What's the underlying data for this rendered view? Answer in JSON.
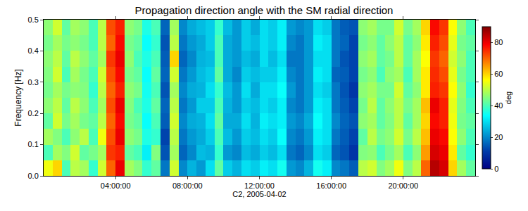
{
  "chart_data": {
    "type": "heatmap",
    "title": "Propagation direction angle with the SM radial direction",
    "x_label": "C2, 2005-04-02",
    "y_label": "Frequency [Hz]",
    "color": "jet",
    "xlim": [
      0,
      24
    ],
    "ylim": [
      0,
      0.5
    ],
    "xticks": [
      {
        "value": 4,
        "label": "04:00:00"
      },
      {
        "value": 8,
        "label": "08:00:00"
      },
      {
        "value": 12,
        "label": "12:00:00"
      },
      {
        "value": 16,
        "label": "16:00:00"
      },
      {
        "value": 20,
        "label": "20:00:00"
      }
    ],
    "yticks": [
      {
        "value": 0,
        "label": "0.0"
      },
      0.1,
      0.2,
      0.3,
      0.4,
      0.5
    ],
    "colorbar": {
      "range": [
        0,
        90
      ],
      "ticks": [
        0,
        20,
        40,
        60,
        80
      ],
      "label": "deg"
    },
    "x": [
      0.25,
      0.75,
      1.25,
      1.75,
      2.25,
      2.75,
      3.25,
      3.75,
      4.25,
      4.75,
      5.25,
      5.75,
      6.25,
      6.75,
      7.25,
      7.75,
      8.25,
      8.75,
      9.25,
      9.75,
      10.25,
      10.75,
      11.25,
      11.75,
      12.25,
      12.75,
      13.25,
      13.75,
      14.25,
      14.75,
      15.25,
      15.75,
      16.25,
      16.75,
      17.25,
      17.75,
      18.25,
      18.75,
      19.25,
      19.75,
      20.25,
      20.75,
      21.25,
      21.75,
      22.25,
      22.75,
      23.25,
      23.75
    ],
    "y": [
      0.025,
      0.075,
      0.125,
      0.175,
      0.225,
      0.275,
      0.325,
      0.375,
      0.425,
      0.475
    ],
    "z": [
      [
        55,
        60,
        40,
        50,
        48,
        38,
        52,
        70,
        80,
        48,
        45,
        38,
        42,
        18,
        52,
        20,
        25,
        22,
        30,
        42,
        28,
        25,
        30,
        28,
        32,
        30,
        35,
        22,
        20,
        25,
        35,
        32,
        20,
        18,
        15,
        50,
        52,
        45,
        48,
        55,
        45,
        50,
        70,
        85,
        82,
        60,
        48,
        42
      ],
      [
        40,
        48,
        45,
        52,
        42,
        44,
        48,
        74,
        76,
        42,
        40,
        32,
        45,
        14,
        48,
        16,
        20,
        26,
        25,
        38,
        22,
        20,
        26,
        24,
        28,
        26,
        30,
        18,
        16,
        20,
        30,
        28,
        16,
        14,
        10,
        45,
        46,
        40,
        44,
        48,
        40,
        46,
        65,
        82,
        80,
        58,
        42,
        38
      ],
      [
        48,
        45,
        40,
        46,
        50,
        40,
        55,
        72,
        80,
        46,
        44,
        36,
        38,
        12,
        50,
        18,
        22,
        24,
        28,
        40,
        26,
        22,
        28,
        26,
        30,
        28,
        34,
        20,
        18,
        22,
        32,
        30,
        18,
        15,
        12,
        42,
        50,
        44,
        46,
        52,
        44,
        50,
        62,
        80,
        78,
        56,
        46,
        40
      ],
      [
        42,
        52,
        44,
        48,
        44,
        42,
        50,
        70,
        78,
        44,
        42,
        34,
        40,
        15,
        52,
        20,
        24,
        25,
        30,
        42,
        24,
        24,
        30,
        25,
        32,
        30,
        32,
        22,
        20,
        24,
        34,
        30,
        20,
        16,
        14,
        46,
        48,
        42,
        45,
        50,
        42,
        48,
        60,
        78,
        76,
        55,
        44,
        42
      ],
      [
        46,
        50,
        42,
        50,
        46,
        40,
        48,
        72,
        80,
        45,
        40,
        36,
        42,
        16,
        50,
        18,
        22,
        28,
        28,
        40,
        25,
        22,
        28,
        26,
        30,
        28,
        32,
        20,
        18,
        22,
        32,
        30,
        18,
        15,
        12,
        44,
        50,
        42,
        46,
        50,
        44,
        48,
        62,
        80,
        76,
        54,
        45,
        40
      ],
      [
        44,
        48,
        44,
        46,
        45,
        38,
        50,
        70,
        76,
        46,
        44,
        35,
        40,
        14,
        48,
        20,
        24,
        25,
        30,
        38,
        26,
        22,
        30,
        24,
        30,
        30,
        34,
        22,
        18,
        22,
        30,
        28,
        18,
        14,
        10,
        46,
        48,
        44,
        44,
        52,
        42,
        46,
        58,
        76,
        74,
        56,
        46,
        38
      ],
      [
        45,
        52,
        40,
        48,
        44,
        40,
        52,
        72,
        78,
        44,
        42,
        34,
        42,
        16,
        52,
        18,
        22,
        26,
        28,
        42,
        24,
        20,
        28,
        26,
        28,
        28,
        32,
        20,
        18,
        22,
        32,
        30,
        16,
        15,
        12,
        44,
        46,
        40,
        46,
        48,
        40,
        48,
        58,
        75,
        72,
        54,
        44,
        40
      ],
      [
        46,
        50,
        42,
        50,
        46,
        42,
        48,
        74,
        80,
        46,
        40,
        36,
        40,
        15,
        60,
        16,
        20,
        25,
        26,
        40,
        24,
        22,
        26,
        24,
        30,
        26,
        30,
        18,
        18,
        22,
        30,
        30,
        18,
        14,
        12,
        46,
        48,
        42,
        44,
        50,
        42,
        48,
        56,
        74,
        70,
        52,
        46,
        40
      ],
      [
        44,
        48,
        44,
        46,
        44,
        40,
        50,
        70,
        78,
        44,
        42,
        34,
        38,
        14,
        50,
        18,
        22,
        24,
        28,
        40,
        24,
        22,
        28,
        26,
        30,
        28,
        32,
        20,
        18,
        22,
        32,
        30,
        18,
        16,
        12,
        44,
        46,
        42,
        46,
        50,
        42,
        46,
        58,
        76,
        72,
        54,
        44,
        42
      ],
      [
        46,
        52,
        42,
        48,
        46,
        40,
        50,
        72,
        76,
        46,
        44,
        36,
        40,
        16,
        48,
        20,
        24,
        26,
        28,
        38,
        26,
        22,
        28,
        24,
        30,
        28,
        32,
        22,
        20,
        22,
        30,
        28,
        18,
        15,
        14,
        46,
        48,
        44,
        44,
        52,
        44,
        48,
        60,
        78,
        74,
        56,
        46,
        40
      ]
    ]
  }
}
